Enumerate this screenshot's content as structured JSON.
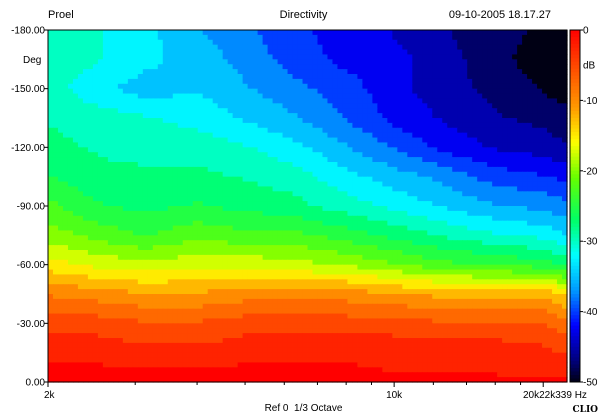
{
  "header": {
    "left": "Proel",
    "center": "Directivity",
    "right": "09-10-2005 18.17.27"
  },
  "footer": {
    "reference": "Ref 0",
    "smoothing": "1/3 Octave",
    "brand": "CLIO"
  },
  "chart_data": {
    "type": "heatmap",
    "title": "Directivity",
    "xscale": "log",
    "xlim": [
      2000,
      22339
    ],
    "ylim": [
      0,
      -180
    ],
    "zlim": [
      -50,
      0
    ],
    "xunit": "Hz",
    "yunit": "Deg",
    "zunit": "dB",
    "xticks": [
      {
        "value": 2000,
        "label": "2k"
      },
      {
        "value": 10000,
        "label": "10k"
      },
      {
        "value": 20000,
        "label": "20k"
      },
      {
        "value": 22000,
        "label": "22k"
      },
      {
        "value": 339,
        "label": "339 Hz"
      }
    ],
    "yticks": [
      {
        "value": -180,
        "label": "-180.00"
      },
      {
        "value": -150,
        "label": "-150.00"
      },
      {
        "value": -120,
        "label": "-120.00"
      },
      {
        "value": -90,
        "label": "-90.00"
      },
      {
        "value": -60,
        "label": "-60.00"
      },
      {
        "value": -30,
        "label": "-30.00"
      },
      {
        "value": 0,
        "label": "0.00"
      }
    ],
    "zticks": [
      {
        "value": 0,
        "label": "0"
      },
      {
        "value": -10,
        "label": "-10"
      },
      {
        "value": -20,
        "label": "-20"
      },
      {
        "value": -30,
        "label": "-30"
      },
      {
        "value": -40,
        "label": "-40"
      },
      {
        "value": -50,
        "label": "-50"
      }
    ],
    "colorscale": [
      {
        "value": 0,
        "color": "#ff0000"
      },
      {
        "value": -6,
        "color": "#ff5500"
      },
      {
        "value": -11,
        "color": "#ff9900"
      },
      {
        "value": -16,
        "color": "#ffff00"
      },
      {
        "value": -21,
        "color": "#66ff00"
      },
      {
        "value": -27,
        "color": "#00ff66"
      },
      {
        "value": -32,
        "color": "#00ffff"
      },
      {
        "value": -37,
        "color": "#0099ff"
      },
      {
        "value": -42,
        "color": "#0000ff"
      },
      {
        "value": -47,
        "color": "#00007a"
      },
      {
        "value": -50,
        "color": "#000014"
      }
    ],
    "x_samples_hz": [
      2000,
      2500,
      3150,
      4000,
      5000,
      6300,
      8000,
      10000,
      12500,
      16000,
      20000,
      22339
    ],
    "y_samples_deg": [
      0,
      -15,
      -30,
      -45,
      -60,
      -75,
      -90,
      -105,
      -120,
      -135,
      -150,
      -165,
      -180
    ],
    "z_db": [
      [
        0,
        0,
        0,
        0,
        0,
        0,
        0,
        -1,
        -1,
        -1,
        -1,
        -1
      ],
      [
        -2,
        -2,
        -3,
        -3,
        -2,
        -2,
        -2,
        -2,
        -2,
        -2,
        -3,
        -4
      ],
      [
        -5,
        -5,
        -6,
        -6,
        -5,
        -5,
        -5,
        -5,
        -6,
        -6,
        -6,
        -8
      ],
      [
        -9,
        -10,
        -11,
        -11,
        -10,
        -10,
        -10,
        -11,
        -12,
        -12,
        -12,
        -14
      ],
      [
        -15,
        -17,
        -18,
        -17,
        -17,
        -18,
        -19,
        -21,
        -23,
        -24,
        -25,
        -27
      ],
      [
        -20,
        -22,
        -24,
        -22,
        -23,
        -23,
        -25,
        -27,
        -29,
        -31,
        -32,
        -34
      ],
      [
        -23,
        -26,
        -27,
        -26,
        -27,
        -28,
        -30,
        -32,
        -34,
        -36,
        -37,
        -38
      ],
      [
        -26,
        -28,
        -28,
        -28,
        -29,
        -30,
        -33,
        -35,
        -37,
        -40,
        -41,
        -42
      ],
      [
        -28,
        -29,
        -30,
        -30,
        -31,
        -33,
        -36,
        -39,
        -42,
        -44,
        -45,
        -46
      ],
      [
        -29,
        -30,
        -31,
        -32,
        -34,
        -36,
        -39,
        -42,
        -44,
        -46,
        -47,
        -48
      ],
      [
        -30,
        -33,
        -35,
        -34,
        -36,
        -38,
        -40,
        -43,
        -45,
        -47,
        -49,
        -50
      ],
      [
        -29,
        -31,
        -33,
        -35,
        -37,
        -40,
        -42,
        -43,
        -45,
        -48,
        -50,
        -50
      ],
      [
        -29,
        -31,
        -33,
        -36,
        -38,
        -41,
        -42,
        -44,
        -46,
        -48,
        -49,
        -50
      ]
    ]
  }
}
